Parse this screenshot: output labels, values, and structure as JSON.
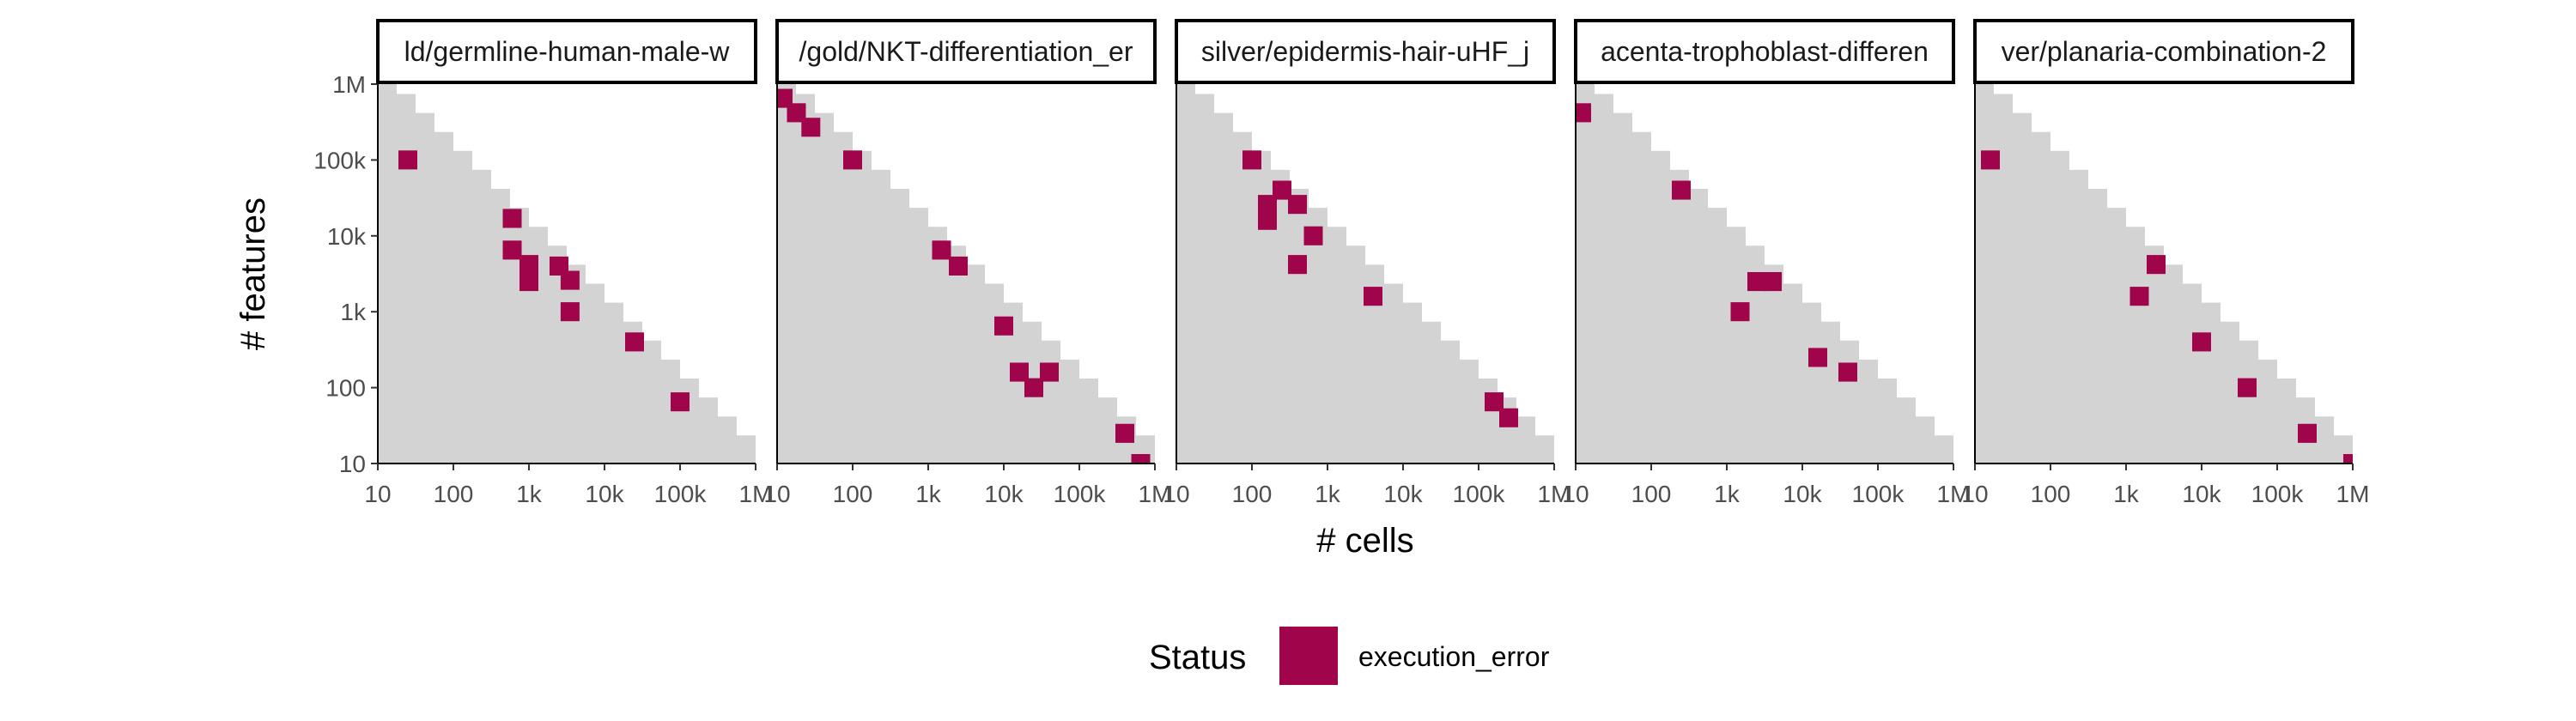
{
  "chart_data": {
    "type": "heatmap",
    "xlabel": "# cells",
    "ylabel": "# features",
    "x_scale": "log10",
    "y_scale": "log10",
    "xlim": [
      10,
      1000000
    ],
    "ylim": [
      10,
      1000000
    ],
    "x_ticks": [
      {
        "value": 10,
        "label": "10"
      },
      {
        "value": 100,
        "label": "100"
      },
      {
        "value": 1000,
        "label": "1k"
      },
      {
        "value": 10000,
        "label": "10k"
      },
      {
        "value": 100000,
        "label": "100k"
      },
      {
        "value": 1000000,
        "label": "1M"
      }
    ],
    "y_ticks": [
      {
        "value": 10,
        "label": "10"
      },
      {
        "value": 100,
        "label": "100"
      },
      {
        "value": 1000,
        "label": "1k"
      },
      {
        "value": 10000,
        "label": "10k"
      },
      {
        "value": 100000,
        "label": "100k"
      },
      {
        "value": 1000000,
        "label": "1M"
      }
    ],
    "background_color": "#d3d3d3",
    "status_colors": {
      "execution_error": "#a0044a"
    },
    "legend": {
      "title": "Status",
      "position": "bottom",
      "entries": [
        "execution_error"
      ]
    },
    "panels": [
      {
        "title": "ld/germline-human-male-w",
        "points": [
          [
            25,
            100000
          ],
          [
            600,
            17000
          ],
          [
            600,
            6500
          ],
          [
            1000,
            4200
          ],
          [
            1000,
            3200
          ],
          [
            1000,
            2500
          ],
          [
            2500,
            4000
          ],
          [
            3500,
            2600
          ],
          [
            3500,
            1000
          ],
          [
            25000,
            400
          ],
          [
            100000,
            65
          ]
        ]
      },
      {
        "title": "/gold/NKT-differentiation_er",
        "points": [
          [
            12,
            650000
          ],
          [
            18,
            420000
          ],
          [
            28,
            270000
          ],
          [
            100,
            100000
          ],
          [
            1500,
            6500
          ],
          [
            2500,
            4000
          ],
          [
            10000,
            650
          ],
          [
            16000,
            160
          ],
          [
            25000,
            100
          ],
          [
            40000,
            160
          ],
          [
            400000,
            25
          ],
          [
            650000,
            10
          ]
        ]
      },
      {
        "title": "silver/epidermis-hair-uHF_j",
        "points": [
          [
            100,
            100000
          ],
          [
            160,
            26000
          ],
          [
            160,
            16000
          ],
          [
            250,
            40000
          ],
          [
            400,
            26000
          ],
          [
            400,
            4200
          ],
          [
            650,
            10000
          ],
          [
            4000,
            1600
          ],
          [
            160000,
            65
          ],
          [
            250000,
            40
          ]
        ]
      },
      {
        "title": "acenta-trophoblast-differen",
        "points": [
          [
            12,
            420000
          ],
          [
            250,
            40000
          ],
          [
            1500,
            1000
          ],
          [
            2500,
            2500
          ],
          [
            4000,
            2500
          ],
          [
            16000,
            250
          ],
          [
            40000,
            160
          ]
        ]
      },
      {
        "title": "ver/planaria-combination-2",
        "points": [
          [
            16,
            100000
          ],
          [
            1500,
            1600
          ],
          [
            2500,
            4200
          ],
          [
            10000,
            400
          ],
          [
            40000,
            100
          ],
          [
            250000,
            25
          ],
          [
            1000000,
            10
          ]
        ]
      }
    ]
  }
}
